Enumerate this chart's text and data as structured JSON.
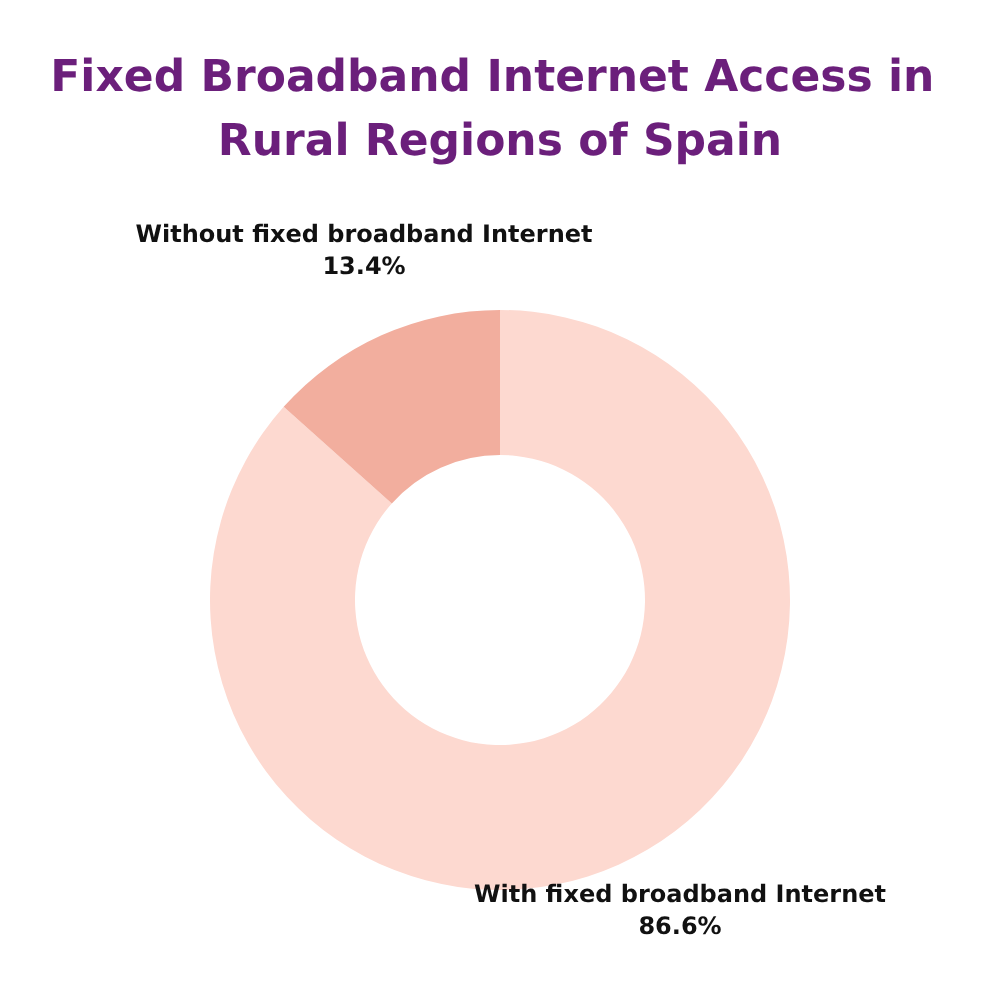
{
  "chart_data": {
    "type": "donut",
    "title": "Fixed Broadband Internet Access in Rural Regions of Spain",
    "categories": [
      "With fixed broadband Internet",
      "Without fixed broadband Internet"
    ],
    "values": [
      86.6,
      13.4
    ],
    "colors": [
      "#fdd9d0",
      "#f2ae9e"
    ],
    "value_labels": [
      "86.6%",
      "13.4%"
    ],
    "legend": false
  }
}
